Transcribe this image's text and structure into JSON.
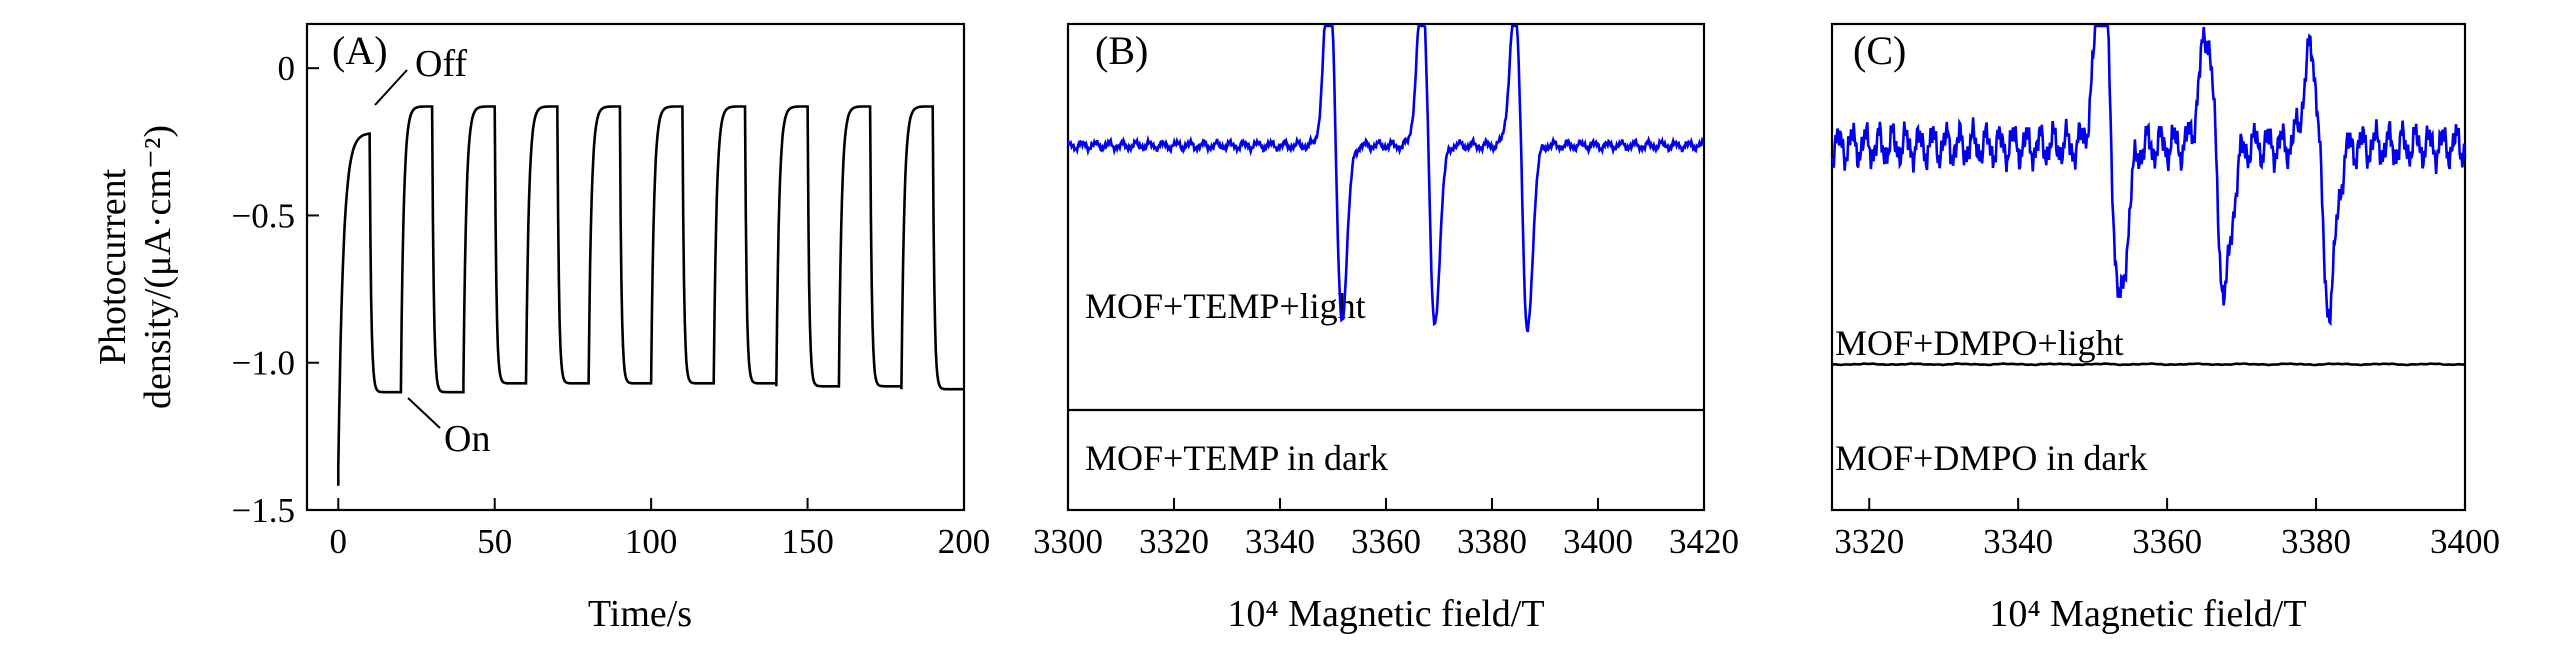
{
  "chart_data": [
    {
      "type": "line",
      "panel_label": "(A)",
      "xlabel": "Time/s",
      "ylabel_lines": [
        "Photocurrent",
        "density/(μA·cm⁻²)"
      ],
      "xlim": [
        -10,
        200
      ],
      "ylim": [
        -1.5,
        0.15
      ],
      "x_ticks": [
        0,
        50,
        100,
        150,
        200
      ],
      "y_ticks": [
        0,
        -0.5,
        -1.0,
        -1.5
      ],
      "y_tick_labels": [
        "0",
        "−0.5",
        "−1.0",
        "−1.5"
      ],
      "color": "#000000",
      "period_s": 20,
      "on_duration_s": 10,
      "initial_current": -1.35,
      "initial_dark_current": -0.22,
      "dark_current": -0.13,
      "illuminated_current": [
        -1.1,
        -1.1,
        -1.07,
        -1.07,
        -1.07,
        -1.07,
        -1.07,
        -1.08,
        -1.08,
        -1.09
      ],
      "annotations": [
        {
          "text": "Off",
          "x": 10,
          "y": -0.2
        },
        {
          "text": "On",
          "x": 19,
          "y": -1.08
        }
      ]
    },
    {
      "type": "line",
      "panel_label": "(B)",
      "xlabel": "10⁴ Magnetic field/T",
      "xlim": [
        3300,
        3420
      ],
      "x_ticks": [
        3300,
        3320,
        3340,
        3360,
        3380,
        3400,
        3420
      ],
      "series": [
        {
          "name": "MOF+TEMP+light",
          "color": "#0000ee",
          "baseline": 0.2,
          "peaks": [
            {
              "center": 3350.5,
              "high": 1.0,
              "low": -0.55
            },
            {
              "center": 3368,
              "high": 0.88,
              "low": -0.57
            },
            {
              "center": 3385.5,
              "high": 0.8,
              "low": -0.6
            }
          ]
        },
        {
          "name": "MOF+TEMP in dark",
          "color": "#000000",
          "baseline": -0.75
        }
      ]
    },
    {
      "type": "line",
      "panel_label": "(C)",
      "xlabel": "10⁴ Magnetic field/T",
      "xlim": [
        3315,
        3400
      ],
      "x_ticks": [
        3320,
        3340,
        3360,
        3380,
        3400
      ],
      "series": [
        {
          "name": "MOF+DMPO+light",
          "color": "#0000ee",
          "baseline": 0.2,
          "peaks": [
            {
              "center": 3352.5,
              "high": 1.0,
              "low": -0.47
            },
            {
              "center": 3366.5,
              "high": 0.68,
              "low": -0.42
            },
            {
              "center": 3380.5,
              "high": 0.6,
              "low": -0.48
            }
          ]
        },
        {
          "name": "MOF+DMPO in dark",
          "color": "#000000",
          "baseline": -0.57
        }
      ]
    }
  ]
}
